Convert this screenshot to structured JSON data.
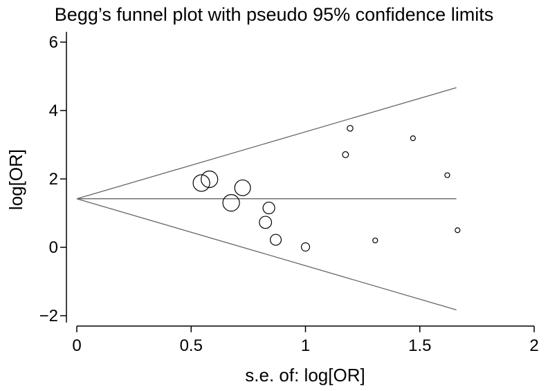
{
  "chart_data": {
    "type": "scatter",
    "title": "Begg’s funnel plot with pseudo 95% confidence limits",
    "xlabel": "s.e. of: log[OR]",
    "ylabel": "log[OR]",
    "xlim": [
      0,
      2
    ],
    "ylim": [
      -2.2,
      6.3
    ],
    "xticks": [
      0,
      0.5,
      1,
      1.5,
      2
    ],
    "xtick_labels": [
      "0",
      "0.5",
      "1",
      "1.5",
      "2"
    ],
    "yticks": [
      -2,
      0,
      2,
      4,
      6
    ],
    "ytick_labels": [
      "−2",
      "0",
      "2",
      "4",
      "6"
    ],
    "pooled_estimate": 1.42,
    "pseudo_ci_lines": {
      "upper": [
        [
          0,
          1.42
        ],
        [
          1.66,
          4.67
        ]
      ],
      "lower": [
        [
          0,
          1.42
        ],
        [
          1.66,
          -1.83
        ]
      ],
      "center": [
        [
          0,
          1.42
        ],
        [
          1.66,
          1.42
        ]
      ]
    },
    "points": [
      {
        "x": 0.545,
        "y": 1.88
      },
      {
        "x": 0.58,
        "y": 1.99
      },
      {
        "x": 0.675,
        "y": 1.3
      },
      {
        "x": 0.725,
        "y": 1.74
      },
      {
        "x": 0.825,
        "y": 0.73
      },
      {
        "x": 0.84,
        "y": 1.15
      },
      {
        "x": 0.87,
        "y": 0.22
      },
      {
        "x": 1.0,
        "y": 0.01
      },
      {
        "x": 1.175,
        "y": 2.71
      },
      {
        "x": 1.195,
        "y": 3.48
      },
      {
        "x": 1.305,
        "y": 0.2
      },
      {
        "x": 1.47,
        "y": 3.19
      },
      {
        "x": 1.62,
        "y": 2.11
      },
      {
        "x": 1.665,
        "y": 0.5
      }
    ]
  }
}
